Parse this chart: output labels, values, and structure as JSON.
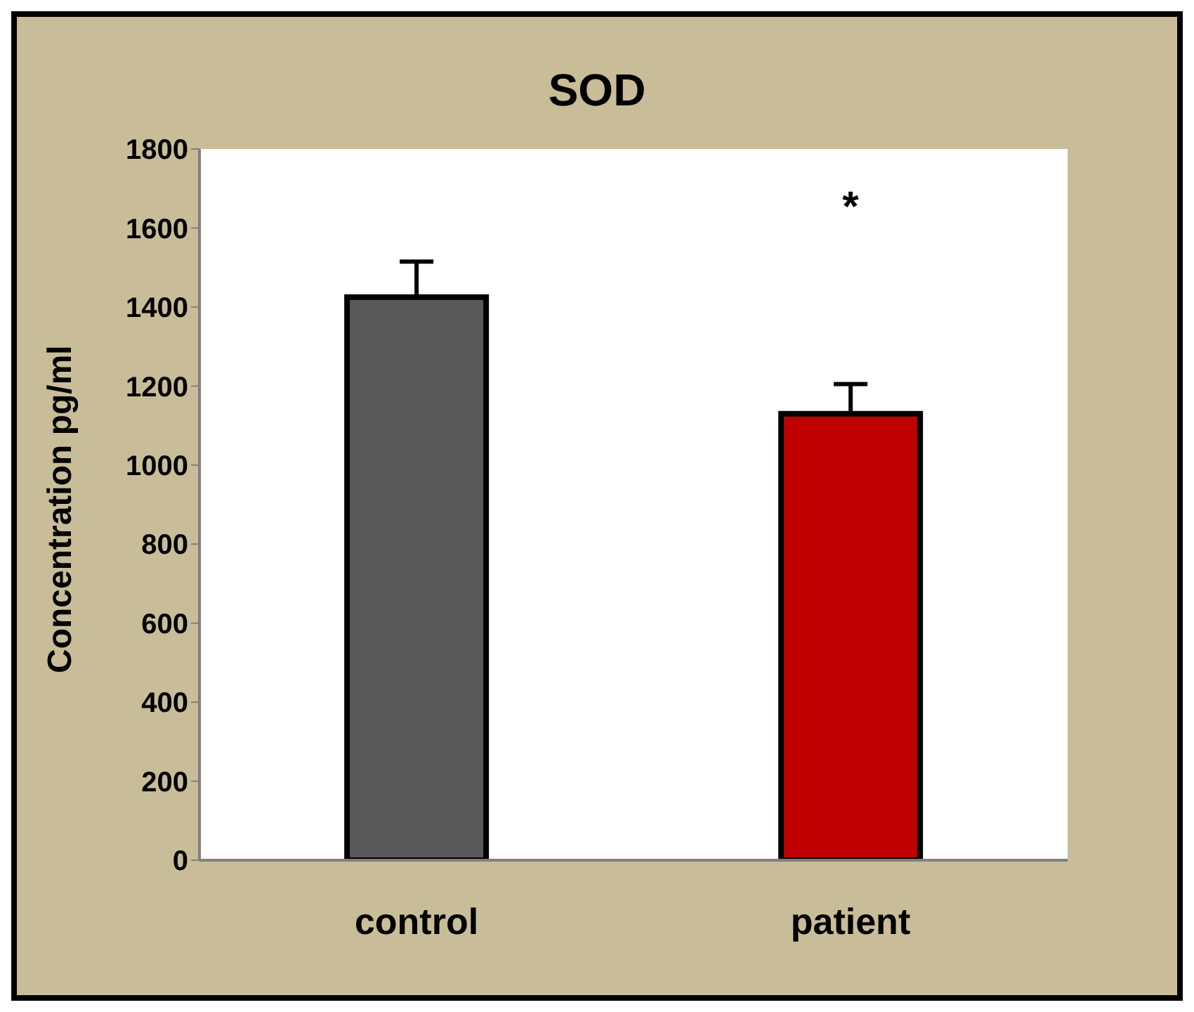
{
  "chart_data": {
    "type": "bar",
    "title": "SOD",
    "ylabel": "Concentration pg/ml",
    "categories": [
      "control",
      "patient"
    ],
    "values": [
      1425,
      1130
    ],
    "colors": [
      "#595959",
      "#c00000"
    ],
    "errors": [
      [
        1425,
        1515
      ],
      [
        1130,
        1205
      ]
    ],
    "ylim": [
      0,
      1800
    ],
    "yticks": [
      0,
      200,
      400,
      600,
      800,
      1000,
      1200,
      1400,
      1600,
      1800
    ],
    "annotations": [
      "*"
    ]
  }
}
